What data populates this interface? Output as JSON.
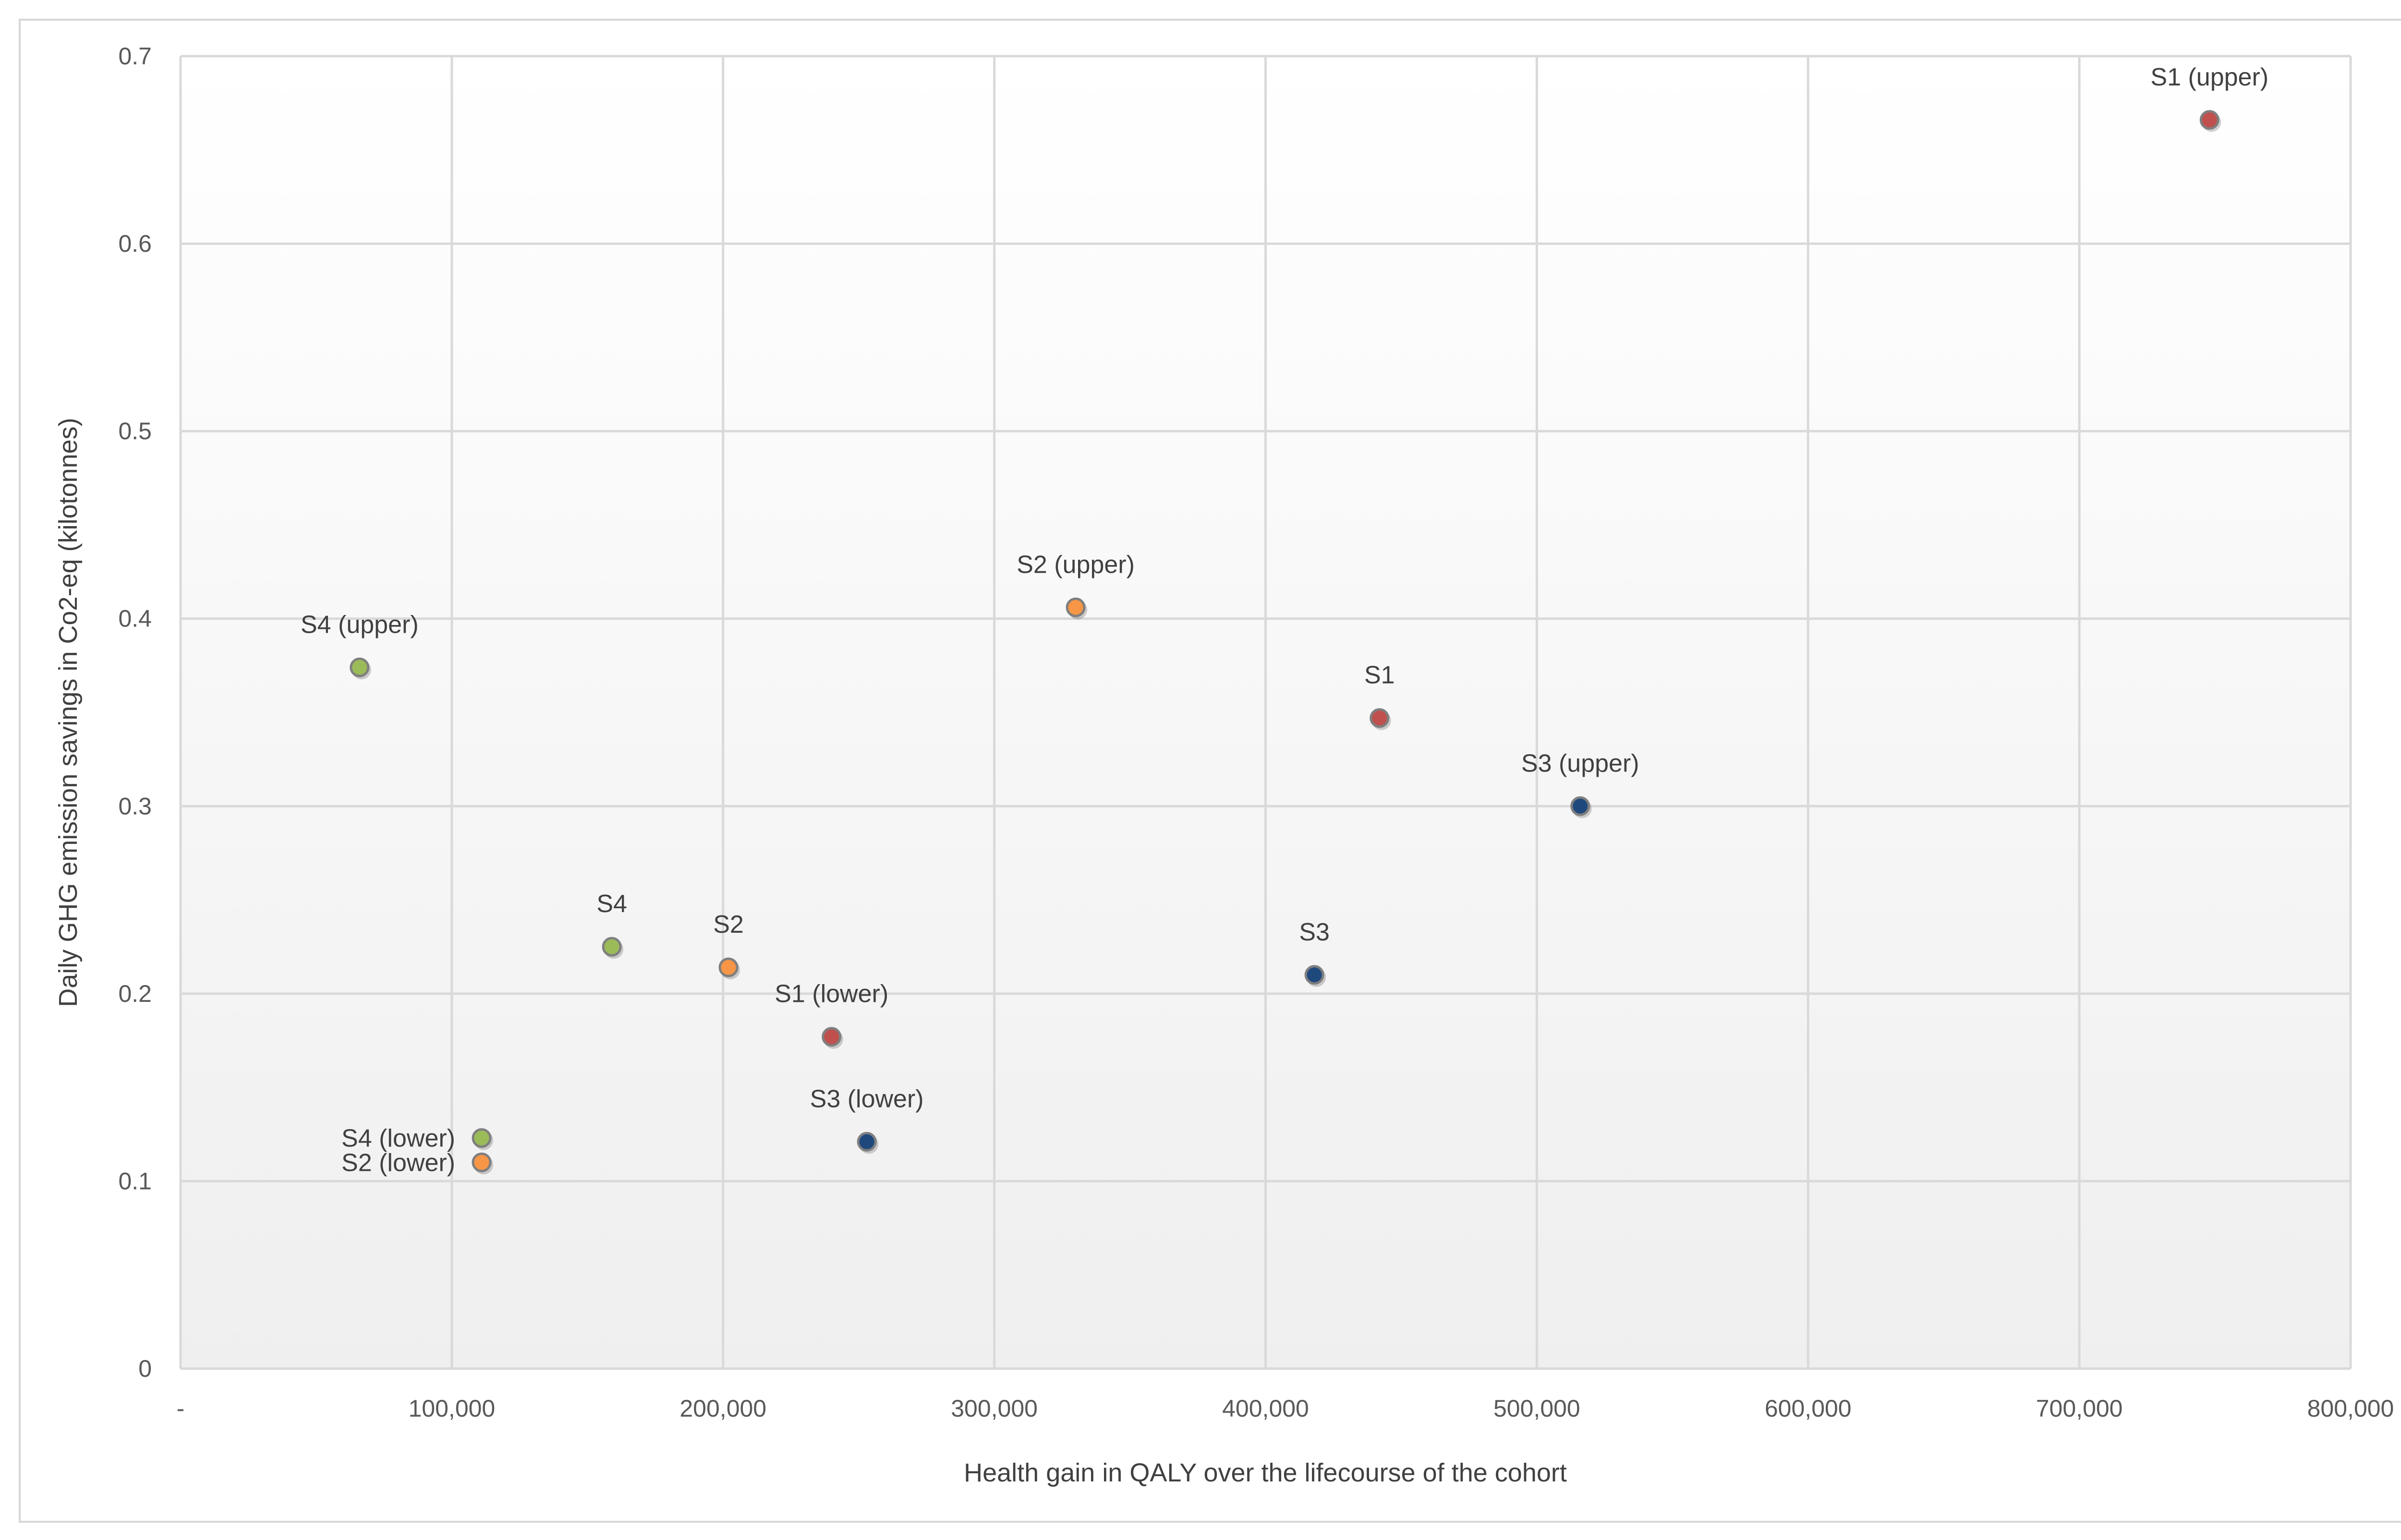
{
  "chart_data": {
    "type": "scatter",
    "title": "",
    "xlabel": "Health gain in QALY over the lifecourse of the cohort",
    "ylabel": "Daily GHG emission savings in Co2-eq (kilotonnes)",
    "xlim": [
      0,
      800000
    ],
    "ylim": [
      0,
      0.7
    ],
    "grid": true,
    "x_ticks": [
      0,
      100000,
      200000,
      300000,
      400000,
      500000,
      600000,
      700000,
      800000
    ],
    "x_tick_labels": [
      "-",
      "100,000",
      "200,000",
      "300,000",
      "400,000",
      "500,000",
      "600,000",
      "700,000",
      "800,000"
    ],
    "y_ticks": [
      0,
      0.1,
      0.2,
      0.3,
      0.4,
      0.5,
      0.6,
      0.7
    ],
    "y_tick_labels": [
      "0",
      "0.1",
      "0.2",
      "0.3",
      "0.4",
      "0.5",
      "0.6",
      "0.7"
    ],
    "series": [
      {
        "name": "S1",
        "color": "#c0504d",
        "points": [
          {
            "label": "S1 (upper)",
            "x": 748000,
            "y": 0.666,
            "label_pos": "above"
          },
          {
            "label": "S1",
            "x": 442000,
            "y": 0.347,
            "label_pos": "above"
          },
          {
            "label": "S1 (lower)",
            "x": 240000,
            "y": 0.177,
            "label_pos": "above"
          }
        ]
      },
      {
        "name": "S2",
        "color": "#f79646",
        "points": [
          {
            "label": "S2 (upper)",
            "x": 330000,
            "y": 0.406,
            "label_pos": "above"
          },
          {
            "label": "S2",
            "x": 202000,
            "y": 0.214,
            "label_pos": "above"
          },
          {
            "label": "S2  (lower)",
            "x": 111000,
            "y": 0.11,
            "label_pos": "left"
          }
        ]
      },
      {
        "name": "S3",
        "color": "#1f497d",
        "points": [
          {
            "label": "S3 (upper)",
            "x": 516000,
            "y": 0.3,
            "label_pos": "above"
          },
          {
            "label": "S3",
            "x": 418000,
            "y": 0.21,
            "label_pos": "above"
          },
          {
            "label": "S3 (lower)",
            "x": 253000,
            "y": 0.121,
            "label_pos": "above"
          }
        ]
      },
      {
        "name": "S4",
        "color": "#9bbb59",
        "points": [
          {
            "label": "S4 (upper)",
            "x": 66000,
            "y": 0.374,
            "label_pos": "above"
          },
          {
            "label": "S4",
            "x": 159000,
            "y": 0.225,
            "label_pos": "above"
          },
          {
            "label": "S4 (lower)",
            "x": 111000,
            "y": 0.123,
            "label_pos": "left"
          }
        ]
      }
    ]
  }
}
